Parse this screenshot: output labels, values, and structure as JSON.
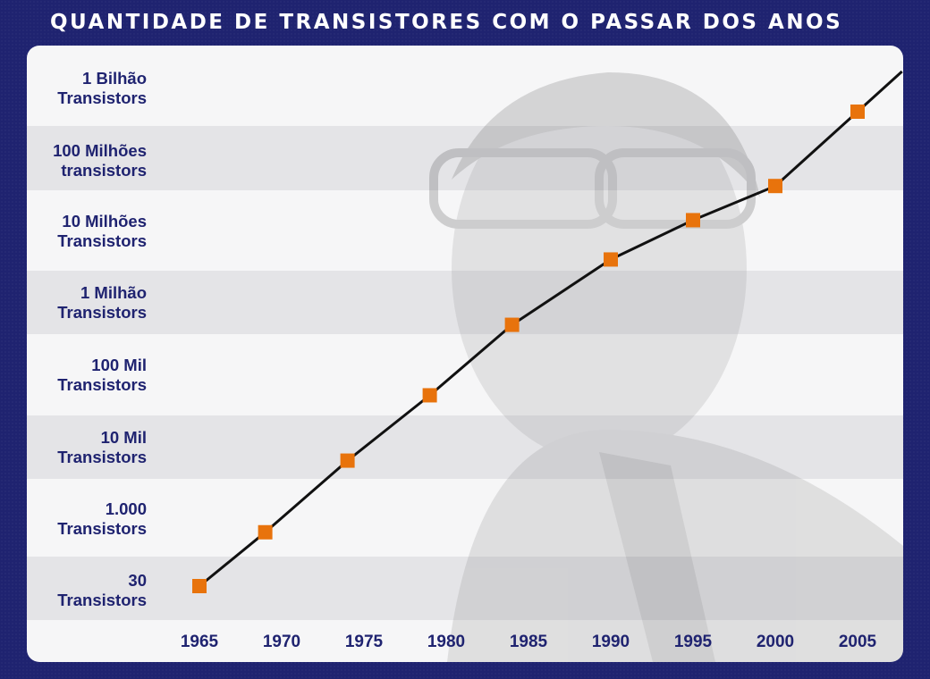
{
  "title": "QUANTIDADE DE TRANSISTORES COM O PASSAR DOS ANOS",
  "colors": {
    "background": "#1f2370",
    "panel": "#f6f6f7",
    "band": "#e4e4e7",
    "line": "#111111",
    "marker": "#e8730c",
    "label": "#1f2370"
  },
  "chart_data": {
    "type": "line",
    "title": "QUANTIDADE DE TRANSISTORES COM O PASSAR DOS ANOS",
    "xlabel": "",
    "ylabel": "",
    "y_scale": "log",
    "x_ticks": [
      "1965",
      "1970",
      "1975",
      "1980",
      "1985",
      "1990",
      "1995",
      "2000",
      "2005"
    ],
    "y_ticks": [
      {
        "value": 30,
        "lines": [
          "30",
          "Transistors"
        ]
      },
      {
        "value": 1000,
        "lines": [
          "1.000",
          "Transistors"
        ]
      },
      {
        "value": 10000,
        "lines": [
          "10 Mil",
          "Transistors"
        ]
      },
      {
        "value": 100000,
        "lines": [
          "100 Mil",
          "Transistors"
        ]
      },
      {
        "value": 1000000,
        "lines": [
          "1 Milhão",
          "Transistors"
        ]
      },
      {
        "value": 10000000,
        "lines": [
          "10 Milhões",
          "Transistors"
        ]
      },
      {
        "value": 100000000,
        "lines": [
          "100 Milhões",
          "transistors"
        ]
      },
      {
        "value": 1000000000,
        "lines": [
          "1 Bilhão",
          "Transistors"
        ]
      }
    ],
    "points": [
      {
        "x": 1965,
        "y": 30
      },
      {
        "x": 1969,
        "y": 200
      },
      {
        "x": 1974,
        "y": 2500
      },
      {
        "x": 1979,
        "y": 25000
      },
      {
        "x": 1984,
        "y": 300000
      },
      {
        "x": 1990,
        "y": 3000000
      },
      {
        "x": 1995,
        "y": 12000000
      },
      {
        "x": 2000,
        "y": 40000000
      },
      {
        "x": 2005,
        "y": 550000000
      }
    ],
    "line_extends_to_x": 2007.7,
    "grid": false,
    "legend": "none"
  }
}
